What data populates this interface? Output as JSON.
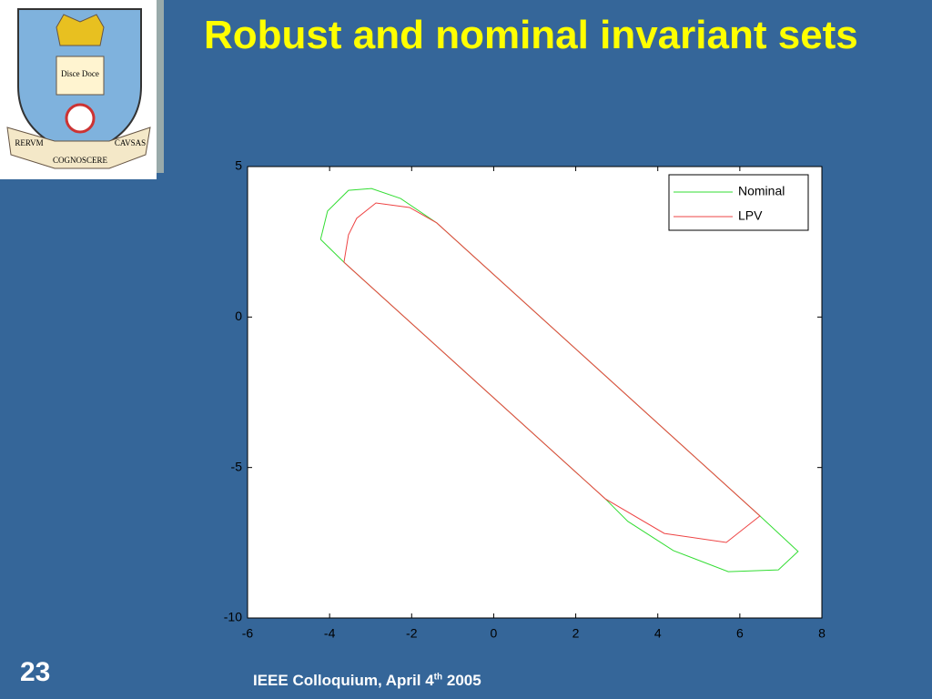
{
  "slide": {
    "title": "Robust and nominal invariant sets",
    "page_number": "23",
    "footer": [
      "IEEE Colloquium, April 4",
      "th",
      "2005"
    ],
    "logo": {
      "book": "Disce Doce",
      "motto": [
        "RERVM",
        "COGNOSCERE",
        "CAVSAS"
      ]
    }
  },
  "chart_data": {
    "type": "line",
    "series": [
      {
        "name": "Nominal",
        "color": "#33dd33",
        "x": [
          -4.22,
          -4.05,
          -3.54,
          -2.98,
          -2.27,
          -1.39,
          6.49,
          7.42,
          6.94,
          5.72,
          4.38,
          3.27,
          2.72,
          -3.65,
          -4.22
        ],
        "values": [
          2.58,
          3.52,
          4.21,
          4.27,
          3.94,
          3.13,
          -6.61,
          -7.79,
          -8.4,
          -8.46,
          -7.76,
          -6.79,
          -6.04,
          1.82,
          2.58
        ]
      },
      {
        "name": "LPV",
        "color": "#ee4444",
        "x": [
          -3.65,
          -3.54,
          -3.34,
          -2.87,
          -2.05,
          -1.39,
          6.49,
          5.67,
          4.16,
          2.72,
          -3.65
        ],
        "values": [
          1.82,
          2.73,
          3.28,
          3.79,
          3.64,
          3.13,
          -6.61,
          -7.49,
          -7.19,
          -6.04,
          1.82
        ]
      }
    ],
    "xlim": [
      -6,
      8
    ],
    "ylim": [
      -10,
      5
    ],
    "xticks": [
      -6,
      -4,
      -2,
      0,
      2,
      4,
      6,
      8
    ],
    "yticks": [
      -10,
      -5,
      0,
      5
    ],
    "legend": "top-right",
    "grid": false
  }
}
